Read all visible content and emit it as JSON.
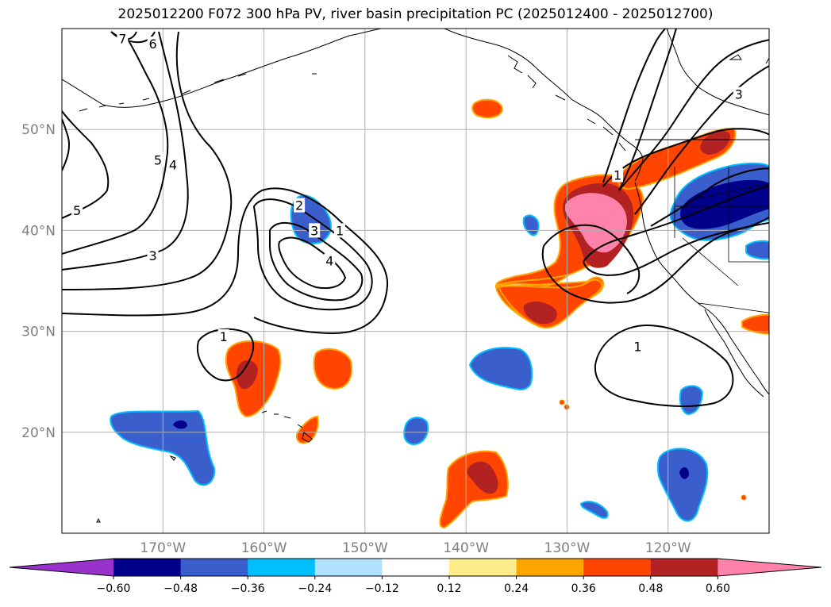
{
  "title": "2025012200 F072 300 hPa PV, river basin precipitation PC (2025012400 - 2025012700)",
  "map": {
    "projection": "equirectangular",
    "lon_range": [
      -180,
      -110
    ],
    "lat_range": [
      10,
      60
    ],
    "lat_ticks": [
      {
        "value": 50,
        "label": "50°N"
      },
      {
        "value": 40,
        "label": "40°N"
      },
      {
        "value": 30,
        "label": "30°N"
      },
      {
        "value": 20,
        "label": "20°N"
      }
    ],
    "lon_ticks": [
      {
        "value": -170,
        "label": "170°W"
      },
      {
        "value": -160,
        "label": "160°W"
      },
      {
        "value": -150,
        "label": "150°W"
      },
      {
        "value": -140,
        "label": "140°W"
      },
      {
        "value": -130,
        "label": "130°W"
      },
      {
        "value": -120,
        "label": "120°W"
      }
    ],
    "grid": true,
    "contour_labels": [
      {
        "text": "7",
        "lon": -174,
        "lat": 59
      },
      {
        "text": "6",
        "lon": -171,
        "lat": 58.5
      },
      {
        "text": "5",
        "lon": -178.5,
        "lat": 42
      },
      {
        "text": "5",
        "lon": -170.5,
        "lat": 47
      },
      {
        "text": "4",
        "lon": -169,
        "lat": 46.5
      },
      {
        "text": "3",
        "lon": -171,
        "lat": 37.5
      },
      {
        "text": "2",
        "lon": -156.5,
        "lat": 42.5
      },
      {
        "text": "3",
        "lon": -155,
        "lat": 40
      },
      {
        "text": "1",
        "lon": -152.5,
        "lat": 40
      },
      {
        "text": "4",
        "lon": -153.5,
        "lat": 37
      },
      {
        "text": "1",
        "lon": -164,
        "lat": 29.5
      },
      {
        "text": "1",
        "lon": -125,
        "lat": 45.5
      },
      {
        "text": "3",
        "lon": -113,
        "lat": 53.5
      },
      {
        "text": "1",
        "lon": -123,
        "lat": 28.5
      }
    ]
  },
  "colorbar": {
    "colors": [
      "#9932cc",
      "#00008b",
      "#3a5fcd",
      "#00bfff",
      "#b0e2ff",
      "#ffffff",
      "#ffec8b",
      "#ffa500",
      "#ff4500",
      "#b22222",
      "#ff82ab"
    ],
    "tick_labels": [
      "−0.60",
      "−0.48",
      "−0.36",
      "−0.24",
      "−0.12",
      "0.12",
      "0.24",
      "0.36",
      "0.48",
      "0.60"
    ]
  }
}
